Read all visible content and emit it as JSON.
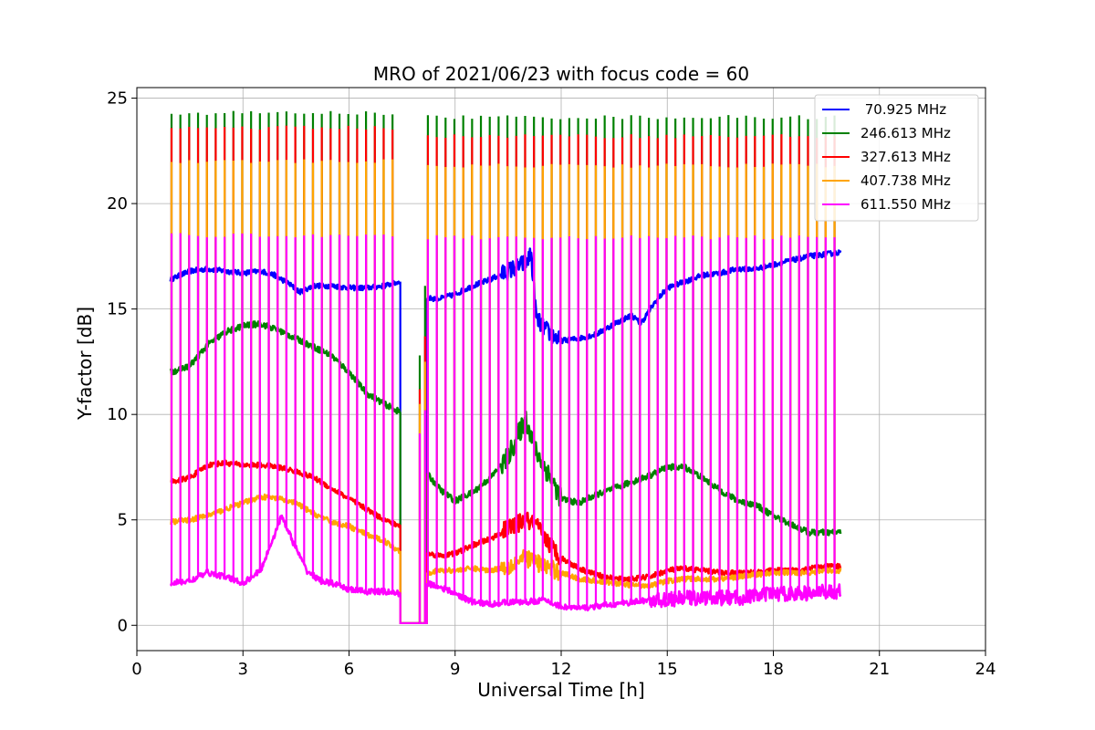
{
  "chart_data": {
    "type": "line",
    "title": "MRO of 2021/06/23 with focus code = 60",
    "xlabel": "Universal Time [h]",
    "ylabel": "Y-factor [dB]",
    "xlim": [
      0,
      24
    ],
    "ylim": [
      -1.2,
      25.5
    ],
    "xticks": [
      0,
      3,
      6,
      9,
      12,
      15,
      18,
      21,
      24
    ],
    "yticks": [
      0,
      5,
      10,
      15,
      20,
      25
    ],
    "grid": true,
    "legend_position": "top-right",
    "series": [
      {
        "name": " 70.925 MHz",
        "color": "#0000ff",
        "x": [
          0.95,
          1.5,
          2,
          2.5,
          3,
          3.5,
          3.9,
          4.3,
          4.6,
          5,
          5.5,
          6,
          6.5,
          7,
          7.45,
          8.2,
          8.6,
          9,
          9.5,
          10,
          10.5,
          11,
          11.15,
          11.3,
          11.7,
          12,
          12.5,
          13,
          13.5,
          14,
          14.25,
          14.6,
          15,
          15.5,
          16,
          16.5,
          17,
          17.5,
          18,
          18.5,
          19,
          19.5,
          19.9
        ],
        "values": [
          16.4,
          16.8,
          16.9,
          16.8,
          16.7,
          16.8,
          16.6,
          16.2,
          15.8,
          16.1,
          16.1,
          16.0,
          16.0,
          16.1,
          16.3,
          15.5,
          15.5,
          15.7,
          16.1,
          16.4,
          16.8,
          17.2,
          17.6,
          14.5,
          13.8,
          13.5,
          13.6,
          13.8,
          14.3,
          14.7,
          14.3,
          15.2,
          16.0,
          16.3,
          16.6,
          16.7,
          16.9,
          16.9,
          17.1,
          17.3,
          17.5,
          17.6,
          17.7
        ]
      },
      {
        "name": "246.613 MHz",
        "color": "#008000",
        "x": [
          0.95,
          1.5,
          2,
          2.5,
          3,
          3.5,
          4,
          4.5,
          5,
          5.5,
          6,
          6.5,
          7,
          7.45,
          8.2,
          8.6,
          9,
          9.5,
          10,
          10.5,
          11,
          11.3,
          11.7,
          12,
          12.5,
          13,
          13.5,
          14,
          14.5,
          15,
          15.5,
          16,
          16.5,
          17,
          17.5,
          18,
          18.5,
          19,
          19.5,
          19.9
        ],
        "values": [
          12.0,
          12.3,
          13.3,
          13.9,
          14.2,
          14.3,
          14.0,
          13.6,
          13.2,
          12.8,
          12.0,
          11.0,
          10.5,
          10.1,
          7.2,
          6.4,
          5.9,
          6.3,
          7.0,
          8.0,
          9.8,
          8.2,
          7.0,
          6.0,
          5.8,
          6.2,
          6.5,
          6.8,
          7.1,
          7.5,
          7.5,
          7.0,
          6.4,
          5.9,
          5.7,
          5.2,
          4.8,
          4.4,
          4.4,
          4.4
        ]
      },
      {
        "name": "327.613 MHz",
        "color": "#ff0000",
        "x": [
          0.95,
          1.5,
          2,
          2.5,
          3,
          3.5,
          4,
          4.5,
          5,
          5.5,
          6,
          6.5,
          7,
          7.45,
          8.2,
          8.6,
          9,
          9.5,
          10,
          10.5,
          11,
          11.3,
          11.7,
          12,
          12.5,
          13,
          13.5,
          14,
          14.5,
          15,
          15.5,
          16,
          16.5,
          17,
          17.5,
          18,
          18.5,
          19,
          19.5,
          19.9
        ],
        "values": [
          6.8,
          7.0,
          7.6,
          7.7,
          7.6,
          7.6,
          7.5,
          7.3,
          7.0,
          6.5,
          6.0,
          5.5,
          5.0,
          4.7,
          3.4,
          3.3,
          3.4,
          3.8,
          4.1,
          4.6,
          5.0,
          4.7,
          3.8,
          3.2,
          2.7,
          2.4,
          2.2,
          2.2,
          2.3,
          2.6,
          2.7,
          2.6,
          2.5,
          2.5,
          2.5,
          2.6,
          2.6,
          2.7,
          2.8,
          2.8
        ]
      },
      {
        "name": "407.738 MHz",
        "color": "#ffa500",
        "x": [
          0.95,
          1.5,
          2,
          2.5,
          3,
          3.5,
          4,
          4.5,
          5,
          5.5,
          6,
          6.5,
          7,
          7.45,
          8.2,
          8.6,
          9,
          9.5,
          10,
          10.5,
          11,
          11.3,
          11.7,
          12,
          12.5,
          13,
          13.5,
          14,
          14.5,
          15,
          15.5,
          16,
          16.5,
          17,
          17.5,
          18,
          18.5,
          19,
          19.5,
          19.9
        ],
        "values": [
          4.9,
          5.0,
          5.2,
          5.5,
          5.8,
          6.1,
          6.0,
          5.8,
          5.3,
          4.9,
          4.7,
          4.3,
          4.0,
          3.5,
          2.5,
          2.6,
          2.6,
          2.7,
          2.6,
          2.8,
          3.2,
          3.0,
          2.7,
          2.5,
          2.2,
          2.1,
          2.0,
          1.9,
          1.9,
          2.1,
          2.2,
          2.2,
          2.2,
          2.3,
          2.4,
          2.5,
          2.5,
          2.5,
          2.6,
          2.6
        ]
      },
      {
        "name": "611.550 MHz",
        "color": "#ff00ff",
        "x": [
          0.95,
          1.5,
          2,
          2.5,
          3,
          3.5,
          3.8,
          4.1,
          4.4,
          4.8,
          5.2,
          5.5,
          6,
          6.5,
          7,
          7.45,
          8.2,
          8.6,
          9,
          9.5,
          10,
          10.5,
          11,
          11.5,
          12,
          12.5,
          13,
          13.5,
          14,
          14.5,
          15,
          15.5,
          16,
          16.5,
          17,
          17.5,
          18,
          18.5,
          19,
          19.5,
          19.9
        ],
        "values": [
          2.0,
          2.1,
          2.5,
          2.3,
          2.0,
          2.6,
          3.9,
          5.2,
          4.0,
          2.6,
          2.1,
          2.0,
          1.7,
          1.6,
          1.6,
          1.5,
          2.0,
          1.8,
          1.5,
          1.1,
          1.0,
          1.1,
          1.1,
          1.2,
          0.9,
          0.8,
          0.9,
          1.0,
          1.1,
          1.2,
          1.2,
          1.3,
          1.3,
          1.3,
          1.3,
          1.4,
          1.5,
          1.5,
          1.5,
          1.6,
          1.6
        ]
      }
    ],
    "calibration_spikes": {
      "x_segment_1": [
        0.95,
        7.45
      ],
      "x_segment_2": [
        8.2,
        19.9
      ],
      "spacing_hours": 0.25,
      "levels": {
        "246.613 MHz": 24.3,
        "327.613 MHz": 23.6,
        "407.738 MHz": 22.0,
        "611.550 MHz": 18.5
      },
      "second_segment_levels": {
        "246.613 MHz": 24.1,
        "327.613 MHz": 23.2,
        "407.738 MHz": 21.8,
        "611.550 MHz": 18.4
      }
    },
    "gap": {
      "x": [
        7.45,
        8.2
      ],
      "value": 0.1
    }
  }
}
